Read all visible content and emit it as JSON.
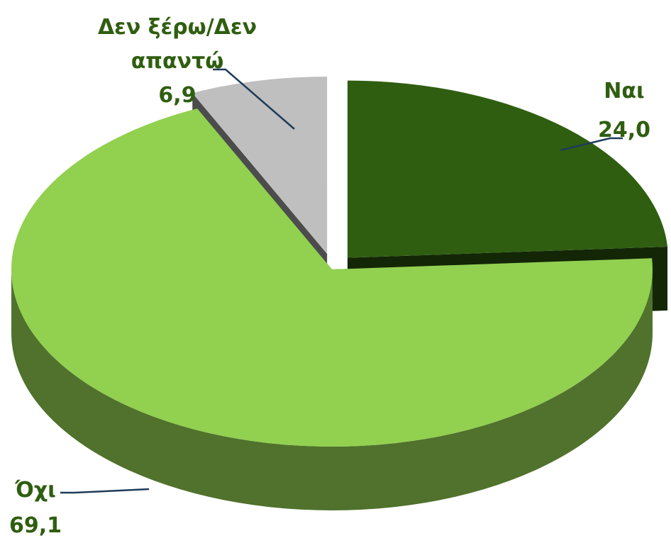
{
  "chart_data": {
    "type": "pie",
    "categories": [
      "Ναι",
      "Όχι",
      "Δεν ξέρω/Δεν απαντώ"
    ],
    "values": [
      24.0,
      69.1,
      6.9
    ],
    "value_labels": [
      "24,0",
      "69,1",
      "6,9"
    ],
    "colors": [
      "#2f5e10",
      "#92d050",
      "#bfbfbf"
    ]
  }
}
